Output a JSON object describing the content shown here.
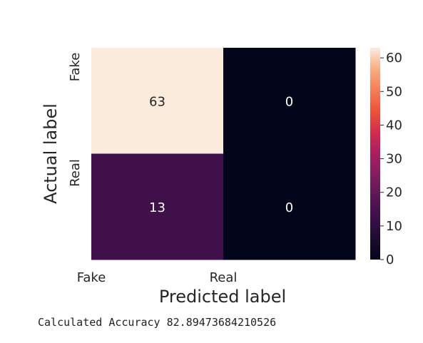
{
  "chart_data": {
    "type": "heatmap",
    "row_labels": [
      "Fake",
      "Real"
    ],
    "col_labels": [
      "Fake",
      "Real"
    ],
    "values": [
      [
        63,
        0
      ],
      [
        13,
        0
      ]
    ],
    "xlabel": "Predicted label",
    "ylabel": "Actual label",
    "colorbar": {
      "min": 0,
      "max": 63,
      "ticks": [
        0,
        10,
        20,
        30,
        40,
        50,
        60
      ],
      "colormap": "rocket"
    },
    "cell_text_colors": {
      "light_cell": "#262626",
      "dark_cell": "#ffffff"
    }
  },
  "output": {
    "accuracy_text": "Calculated Accuracy 82.89473684210526"
  }
}
